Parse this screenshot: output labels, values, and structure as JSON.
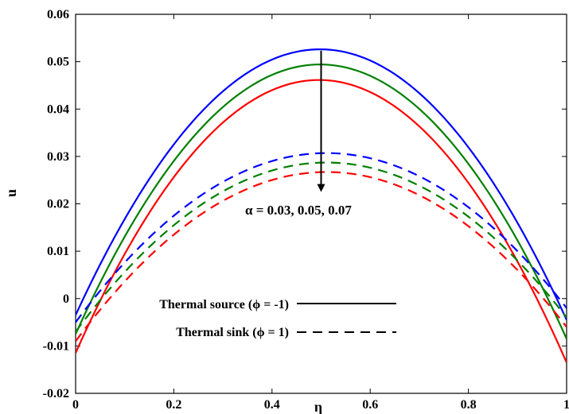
{
  "chart_data": {
    "type": "line",
    "xlabel": "η",
    "ylabel": "u",
    "xlim": [
      0,
      1
    ],
    "ylim": [
      -0.02,
      0.06
    ],
    "x_ticks": [
      "0",
      "0.2",
      "0.4",
      "0.6",
      "0.8",
      "1"
    ],
    "y_ticks": [
      "-0.02",
      "-0.01",
      "0",
      "0.01",
      "0.02",
      "0.03",
      "0.04",
      "0.05",
      "0.06"
    ],
    "x_tick_values": [
      0,
      0.2,
      0.4,
      0.6,
      0.8,
      1
    ],
    "y_tick_values": [
      -0.02,
      -0.01,
      0,
      0.01,
      0.02,
      0.03,
      0.04,
      0.05,
      0.06
    ],
    "grid": false,
    "annotation": "α = 0.03, 0.05, 0.07",
    "arrow": {
      "x": 0.5,
      "y_from": 0.0523,
      "y_to": 0.0225
    },
    "legend": {
      "placement": "bottom-center",
      "entries": [
        {
          "label": "Thermal source (ϕ = -1)",
          "style": "solid"
        },
        {
          "label": "Thermal sink (ϕ = 1)",
          "style": "dashed"
        }
      ]
    },
    "series": [
      {
        "color": "#0000ff",
        "style": "solid",
        "x": [
          0,
          0.52,
          1
        ],
        "y": [
          -0.0035,
          0.0525,
          -0.0045
        ]
      },
      {
        "color": "#008000",
        "style": "solid",
        "x": [
          0,
          0.52,
          1
        ],
        "y": [
          -0.0075,
          0.0493,
          -0.0085
        ]
      },
      {
        "color": "#ff0000",
        "style": "solid",
        "x": [
          0,
          0.52,
          1
        ],
        "y": [
          -0.0115,
          0.046,
          -0.0135
        ]
      },
      {
        "color": "#0000ff",
        "style": "dashed",
        "x": [
          0,
          0.52,
          1
        ],
        "y": [
          -0.005,
          0.0307,
          -0.002
        ]
      },
      {
        "color": "#008000",
        "style": "dashed",
        "x": [
          0,
          0.52,
          1
        ],
        "y": [
          -0.007,
          0.0287,
          -0.004
        ]
      },
      {
        "color": "#ff0000",
        "style": "dashed",
        "x": [
          0,
          0.52,
          1
        ],
        "y": [
          -0.009,
          0.0267,
          -0.006
        ]
      }
    ]
  }
}
